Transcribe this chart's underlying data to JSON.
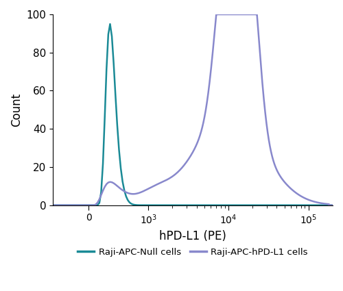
{
  "xlabel": "hPD-L1 (PE)",
  "ylabel": "Count",
  "ylim": [
    0,
    100
  ],
  "yticks": [
    0,
    20,
    40,
    60,
    80,
    100
  ],
  "teal_color": "#1a8a96",
  "purple_color": "#8888cc",
  "line_width": 1.8,
  "legend_teal_label": "Raji-APC-Null cells",
  "legend_purple_label": "Raji-APC-hPD-L1 cells",
  "background_color": "#ffffff",
  "linthresh": 500,
  "xlim": [
    -500,
    200000
  ]
}
